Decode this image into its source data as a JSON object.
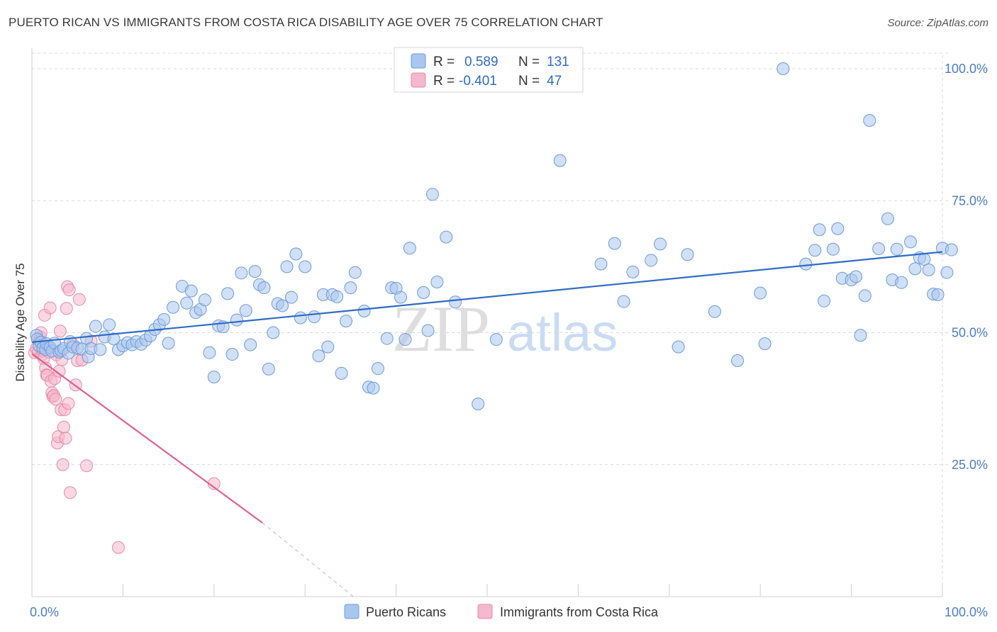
{
  "title": "PUERTO RICAN VS IMMIGRANTS FROM COSTA RICA DISABILITY AGE OVER 75 CORRELATION CHART",
  "source": "Source: ZipAtlas.com",
  "watermark": {
    "zip": "ZIP",
    "atlas": "atlas"
  },
  "colors": {
    "blue_fill": "#a9c7ee",
    "blue_stroke": "#6d9bd9",
    "blue_line": "#2f6bc7",
    "pink_fill": "#f5b8cc",
    "pink_stroke": "#e88aa8",
    "pink_line": "#e0608f",
    "grid": "#d9d9d9",
    "tick_text": "#4a7cc9"
  },
  "legend": {
    "rows": [
      {
        "r_label": "R =",
        "r_value": "0.589",
        "n_label": "N =",
        "n_value": "131",
        "color": "blue"
      },
      {
        "r_label": "R =",
        "r_value": "-0.401",
        "n_label": "N =",
        "n_value": "47",
        "color": "pink"
      }
    ]
  },
  "chart_data": {
    "type": "scatter",
    "title": "PUERTO RICAN VS IMMIGRANTS FROM COSTA RICA DISABILITY AGE OVER 75 CORRELATION CHART",
    "xlabel": "",
    "ylabel": "Disability Age Over 75",
    "xlim": [
      0,
      100
    ],
    "ylim": [
      0,
      100
    ],
    "x_tick_labels": [
      "0.0%",
      "100.0%"
    ],
    "y_tick_labels": [
      "100.0%",
      "75.0%",
      "50.0%",
      "25.0%"
    ],
    "y_tick_values": [
      100,
      75,
      50,
      25
    ],
    "grid": true,
    "legend_position": "top-center",
    "bottom_legend": [
      "Puerto Ricans",
      "Immigrants from Costa Rica"
    ],
    "series": [
      {
        "name": "Puerto Ricans",
        "color": "blue",
        "trend": {
          "x": [
            0,
            100
          ],
          "y": [
            48.2,
            65.3
          ]
        },
        "points": [
          [
            0.5,
            49.5
          ],
          [
            0.6,
            48.8
          ],
          [
            0.8,
            47.5
          ],
          [
            1.0,
            48.2
          ],
          [
            1.2,
            47.1
          ],
          [
            1.5,
            46.8
          ],
          [
            1.6,
            47.9
          ],
          [
            2.0,
            47.2
          ],
          [
            2.2,
            46.5
          ],
          [
            2.5,
            48.0
          ],
          [
            3.0,
            46.3
          ],
          [
            3.2,
            46.6
          ],
          [
            3.5,
            47.0
          ],
          [
            4.0,
            46.1
          ],
          [
            4.2,
            48.3
          ],
          [
            4.5,
            47.3
          ],
          [
            5.0,
            47.1
          ],
          [
            5.5,
            46.9
          ],
          [
            6.0,
            48.9
          ],
          [
            6.2,
            45.4
          ],
          [
            6.5,
            47.0
          ],
          [
            7.0,
            51.2
          ],
          [
            7.5,
            46.8
          ],
          [
            8.0,
            49.2
          ],
          [
            8.5,
            51.5
          ],
          [
            9.0,
            48.8
          ],
          [
            9.5,
            46.8
          ],
          [
            10.0,
            47.5
          ],
          [
            10.5,
            48.1
          ],
          [
            11.0,
            47.7
          ],
          [
            11.5,
            48.3
          ],
          [
            12.0,
            47.8
          ],
          [
            12.5,
            48.6
          ],
          [
            13.0,
            49.4
          ],
          [
            13.5,
            50.6
          ],
          [
            14.0,
            51.5
          ],
          [
            14.5,
            52.5
          ],
          [
            15.0,
            48.0
          ],
          [
            15.5,
            54.8
          ],
          [
            16.5,
            58.8
          ],
          [
            17.0,
            55.6
          ],
          [
            17.5,
            57.9
          ],
          [
            18.0,
            53.8
          ],
          [
            18.5,
            54.4
          ],
          [
            19.0,
            56.2
          ],
          [
            19.5,
            46.2
          ],
          [
            20.0,
            41.6
          ],
          [
            20.5,
            51.3
          ],
          [
            21.0,
            51.1
          ],
          [
            21.5,
            57.4
          ],
          [
            22.0,
            45.9
          ],
          [
            22.5,
            52.4
          ],
          [
            23.0,
            61.3
          ],
          [
            23.5,
            54.2
          ],
          [
            24.0,
            47.7
          ],
          [
            24.5,
            61.6
          ],
          [
            25.0,
            59.1
          ],
          [
            25.5,
            58.5
          ],
          [
            26.0,
            43.1
          ],
          [
            26.5,
            50.0
          ],
          [
            27.0,
            55.5
          ],
          [
            27.5,
            55.1
          ],
          [
            28.0,
            62.5
          ],
          [
            28.5,
            56.7
          ],
          [
            29.0,
            64.9
          ],
          [
            29.5,
            52.8
          ],
          [
            30.0,
            62.5
          ],
          [
            31.0,
            53.0
          ],
          [
            31.5,
            45.6
          ],
          [
            32.0,
            57.2
          ],
          [
            32.5,
            47.3
          ],
          [
            33.0,
            57.2
          ],
          [
            33.5,
            56.8
          ],
          [
            34.0,
            42.3
          ],
          [
            34.5,
            52.2
          ],
          [
            35.0,
            58.5
          ],
          [
            35.5,
            61.4
          ],
          [
            36.5,
            54.1
          ],
          [
            37.0,
            39.7
          ],
          [
            37.5,
            39.5
          ],
          [
            38.0,
            43.2
          ],
          [
            39.0,
            48.9
          ],
          [
            39.5,
            58.5
          ],
          [
            40.0,
            58.4
          ],
          [
            40.5,
            56.7
          ],
          [
            41.0,
            48.7
          ],
          [
            41.5,
            66.0
          ],
          [
            43.0,
            57.6
          ],
          [
            43.5,
            50.4
          ],
          [
            44.0,
            76.2
          ],
          [
            44.5,
            59.6
          ],
          [
            45.5,
            68.1
          ],
          [
            46.5,
            55.8
          ],
          [
            49.0,
            36.5
          ],
          [
            51.0,
            48.7
          ],
          [
            58.0,
            82.6
          ],
          [
            62.5,
            63.0
          ],
          [
            64.0,
            66.9
          ],
          [
            65.0,
            55.9
          ],
          [
            66.0,
            61.5
          ],
          [
            68.0,
            63.7
          ],
          [
            69.0,
            66.8
          ],
          [
            71.0,
            47.3
          ],
          [
            72.0,
            64.8
          ],
          [
            75.0,
            54.0
          ],
          [
            77.5,
            44.7
          ],
          [
            80.0,
            57.5
          ],
          [
            80.5,
            47.9
          ],
          [
            82.5,
            100.0
          ],
          [
            85.0,
            63.0
          ],
          [
            86.0,
            65.6
          ],
          [
            86.5,
            69.5
          ],
          [
            87.0,
            56.0
          ],
          [
            88.0,
            65.8
          ],
          [
            88.5,
            69.7
          ],
          [
            89.0,
            60.3
          ],
          [
            90.0,
            60.0
          ],
          [
            90.5,
            60.6
          ],
          [
            91.0,
            49.5
          ],
          [
            91.5,
            57.0
          ],
          [
            92.0,
            90.2
          ],
          [
            93.0,
            65.9
          ],
          [
            94.0,
            71.6
          ],
          [
            94.5,
            60.0
          ],
          [
            95.0,
            65.8
          ],
          [
            95.5,
            59.5
          ],
          [
            96.5,
            67.2
          ],
          [
            97.0,
            62.1
          ],
          [
            97.5,
            64.2
          ],
          [
            98.0,
            63.9
          ],
          [
            98.5,
            61.9
          ],
          [
            99.0,
            57.3
          ],
          [
            99.5,
            57.2
          ],
          [
            100.0,
            66.0
          ],
          [
            100.5,
            61.4
          ],
          [
            101.0,
            65.7
          ]
        ]
      },
      {
        "name": "Immigrants from Costa Rica",
        "color": "pink",
        "trend": {
          "x": [
            0,
            25.3,
            35.3
          ],
          "y": [
            46.0,
            14.0,
            0
          ]
        },
        "points": [
          [
            0.3,
            46.2
          ],
          [
            0.5,
            47.0
          ],
          [
            0.7,
            46.3
          ],
          [
            0.8,
            48.5
          ],
          [
            0.9,
            49.2
          ],
          [
            1.0,
            50.0
          ],
          [
            1.1,
            45.8
          ],
          [
            1.2,
            46.6
          ],
          [
            1.3,
            45.1
          ],
          [
            1.4,
            53.3
          ],
          [
            1.5,
            43.3
          ],
          [
            1.6,
            42.0
          ],
          [
            1.7,
            41.9
          ],
          [
            1.8,
            47.4
          ],
          [
            1.9,
            46.3
          ],
          [
            2.0,
            54.7
          ],
          [
            2.1,
            40.8
          ],
          [
            2.2,
            38.6
          ],
          [
            2.3,
            37.9
          ],
          [
            2.4,
            38.1
          ],
          [
            2.5,
            41.3
          ],
          [
            2.6,
            37.4
          ],
          [
            2.7,
            45.8
          ],
          [
            2.8,
            29.1
          ],
          [
            2.9,
            30.3
          ],
          [
            3.0,
            42.7
          ],
          [
            3.1,
            50.3
          ],
          [
            3.2,
            35.4
          ],
          [
            3.3,
            44.9
          ],
          [
            3.4,
            25.0
          ],
          [
            3.5,
            32.1
          ],
          [
            3.6,
            35.4
          ],
          [
            3.7,
            30.0
          ],
          [
            3.8,
            54.6
          ],
          [
            3.9,
            58.7
          ],
          [
            4.0,
            36.6
          ],
          [
            4.1,
            58.1
          ],
          [
            4.2,
            19.7
          ],
          [
            4.5,
            47.8
          ],
          [
            4.8,
            40.1
          ],
          [
            5.0,
            44.7
          ],
          [
            5.2,
            56.3
          ],
          [
            5.5,
            44.8
          ],
          [
            6.0,
            24.8
          ],
          [
            6.5,
            48.4
          ],
          [
            9.5,
            9.3
          ],
          [
            20.0,
            21.4
          ]
        ]
      }
    ]
  }
}
